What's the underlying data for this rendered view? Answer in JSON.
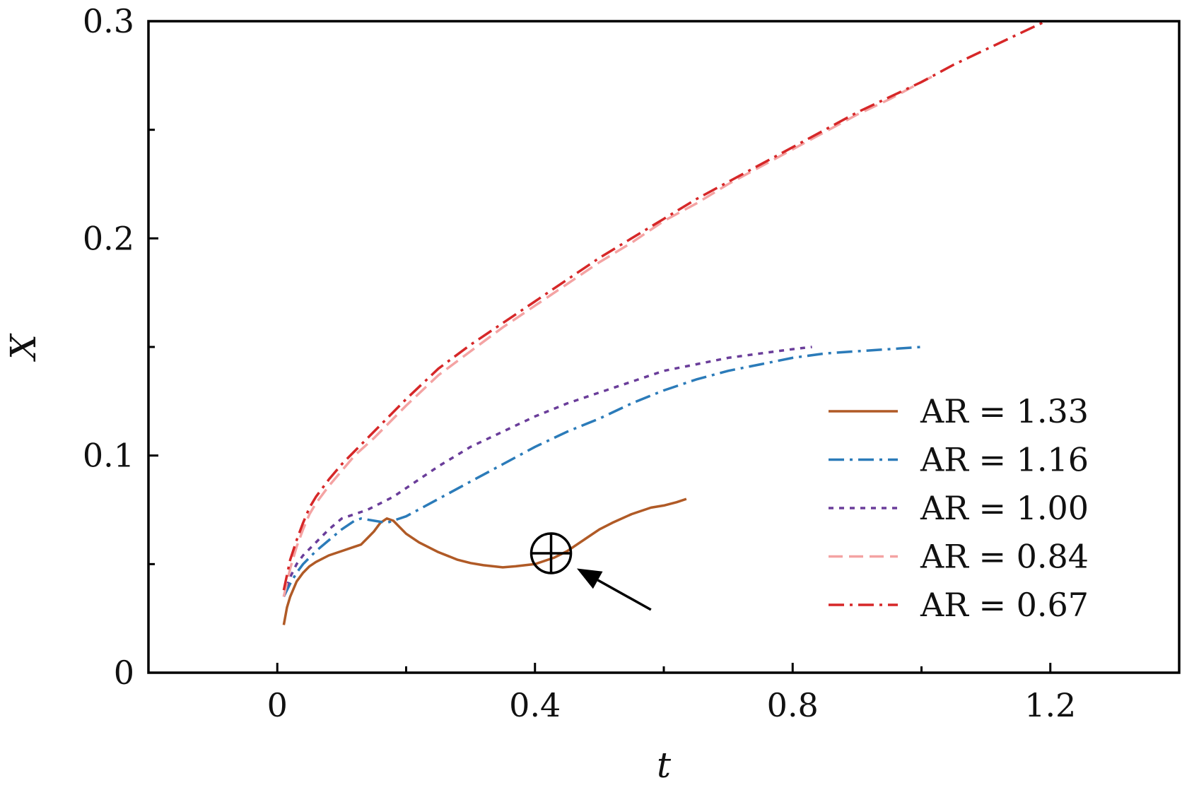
{
  "chart_data": {
    "type": "line",
    "title": "",
    "xlabel": "t",
    "ylabel": "X",
    "xlim": [
      -0.2,
      1.4
    ],
    "ylim": [
      0,
      0.3
    ],
    "x_ticks": [
      0,
      0.4,
      0.8,
      1.2
    ],
    "x_tick_labels": [
      "0",
      "0.4",
      "0.8",
      "1.2"
    ],
    "x_minor_ticks": [
      0.2,
      0.6,
      1.0
    ],
    "y_ticks": [
      0,
      0.1,
      0.2,
      0.3
    ],
    "y_tick_labels": [
      "0",
      "0.1",
      "0.2",
      "0.3"
    ],
    "y_minor_ticks": [
      0.05,
      0.15,
      0.25
    ],
    "grid": false,
    "legend_position": "bottom-right",
    "series": [
      {
        "name": "AR = 1.33",
        "color": "#b05a26",
        "dash": "solid",
        "x": [
          0.01,
          0.015,
          0.02,
          0.03,
          0.04,
          0.05,
          0.06,
          0.08,
          0.1,
          0.12,
          0.13,
          0.14,
          0.15,
          0.16,
          0.17,
          0.18,
          0.2,
          0.22,
          0.25,
          0.28,
          0.3,
          0.32,
          0.35,
          0.37,
          0.4,
          0.43,
          0.45,
          0.48,
          0.5,
          0.52,
          0.55,
          0.58,
          0.6,
          0.62,
          0.635
        ],
        "y": [
          0.022,
          0.03,
          0.035,
          0.042,
          0.046,
          0.049,
          0.051,
          0.054,
          0.056,
          0.058,
          0.059,
          0.062,
          0.065,
          0.069,
          0.071,
          0.07,
          0.064,
          0.06,
          0.0555,
          0.052,
          0.0505,
          0.0495,
          0.0485,
          0.049,
          0.05,
          0.053,
          0.056,
          0.062,
          0.066,
          0.069,
          0.073,
          0.076,
          0.077,
          0.0785,
          0.08
        ]
      },
      {
        "name": "AR = 1.16",
        "color": "#2b7bb9",
        "dash": "dashdot",
        "x": [
          0.01,
          0.015,
          0.02,
          0.03,
          0.04,
          0.05,
          0.06,
          0.08,
          0.1,
          0.12,
          0.13,
          0.15,
          0.17,
          0.2,
          0.25,
          0.3,
          0.35,
          0.4,
          0.45,
          0.5,
          0.55,
          0.6,
          0.65,
          0.7,
          0.75,
          0.8,
          0.85,
          0.9,
          0.95,
          1.0
        ],
        "y": [
          0.035,
          0.038,
          0.041,
          0.046,
          0.05,
          0.053,
          0.056,
          0.061,
          0.066,
          0.07,
          0.071,
          0.07,
          0.069,
          0.072,
          0.08,
          0.088,
          0.096,
          0.104,
          0.111,
          0.117,
          0.124,
          0.13,
          0.135,
          0.139,
          0.142,
          0.145,
          0.147,
          0.148,
          0.149,
          0.15
        ]
      },
      {
        "name": "AR = 1.00",
        "color": "#6a3d9a",
        "dash": "dotted",
        "x": [
          0.01,
          0.015,
          0.02,
          0.03,
          0.04,
          0.05,
          0.06,
          0.08,
          0.1,
          0.12,
          0.14,
          0.16,
          0.18,
          0.2,
          0.25,
          0.3,
          0.35,
          0.4,
          0.45,
          0.5,
          0.55,
          0.6,
          0.65,
          0.7,
          0.75,
          0.8,
          0.83
        ],
        "y": [
          0.035,
          0.04,
          0.044,
          0.05,
          0.054,
          0.057,
          0.06,
          0.066,
          0.071,
          0.073,
          0.075,
          0.078,
          0.081,
          0.085,
          0.095,
          0.104,
          0.111,
          0.118,
          0.124,
          0.129,
          0.134,
          0.139,
          0.142,
          0.145,
          0.147,
          0.149,
          0.15
        ]
      },
      {
        "name": "AR = 0.84",
        "color": "#f4a3a3",
        "dash": "dashed",
        "x": [
          0.01,
          0.02,
          0.03,
          0.04,
          0.05,
          0.06,
          0.08,
          0.1,
          0.12,
          0.15,
          0.2,
          0.25,
          0.3,
          0.35,
          0.4,
          0.45,
          0.5,
          0.55,
          0.6,
          0.65,
          0.7,
          0.75,
          0.8,
          0.85,
          0.9,
          0.95,
          1.0,
          1.02
        ],
        "y": [
          0.035,
          0.048,
          0.058,
          0.066,
          0.073,
          0.078,
          0.086,
          0.093,
          0.1,
          0.108,
          0.123,
          0.137,
          0.148,
          0.159,
          0.169,
          0.179,
          0.189,
          0.198,
          0.208,
          0.216,
          0.225,
          0.233,
          0.241,
          0.249,
          0.257,
          0.264,
          0.272,
          0.275
        ]
      },
      {
        "name": "AR = 0.67",
        "color": "#d62728",
        "dash": "dashdot",
        "x": [
          0.01,
          0.02,
          0.03,
          0.04,
          0.05,
          0.06,
          0.08,
          0.1,
          0.12,
          0.15,
          0.2,
          0.25,
          0.3,
          0.35,
          0.4,
          0.45,
          0.5,
          0.55,
          0.6,
          0.65,
          0.7,
          0.75,
          0.8,
          0.85,
          0.9,
          0.95,
          1.0,
          1.05,
          1.1,
          1.15,
          1.2
        ],
        "y": [
          0.038,
          0.052,
          0.061,
          0.069,
          0.076,
          0.081,
          0.089,
          0.096,
          0.102,
          0.111,
          0.126,
          0.14,
          0.151,
          0.161,
          0.171,
          0.181,
          0.191,
          0.2,
          0.209,
          0.218,
          0.226,
          0.234,
          0.242,
          0.25,
          0.258,
          0.265,
          0.272,
          0.28,
          0.287,
          0.294,
          0.301
        ]
      }
    ],
    "annotations": [
      {
        "type": "marker",
        "symbol": "circled-plus",
        "x": 0.425,
        "y": 0.055
      },
      {
        "type": "arrow",
        "from": [
          0.58,
          0.029
        ],
        "to": [
          0.465,
          0.048
        ]
      }
    ]
  }
}
